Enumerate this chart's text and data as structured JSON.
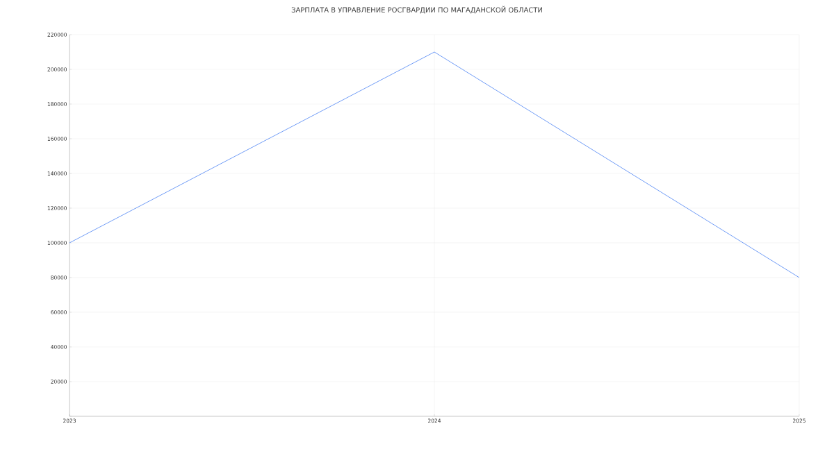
{
  "chart_data": {
    "type": "line",
    "title": "ЗАРПЛАТА В УПРАВЛЕНИЕ РОСГВАРДИИ ПО МАГАДАНСКОЙ ОБЛАСТИ",
    "x": [
      2023,
      2024,
      2025
    ],
    "series": [
      {
        "color": "#6f9cf6",
        "values": [
          100000,
          210000,
          80000
        ]
      }
    ],
    "xlim": [
      2023,
      2025
    ],
    "xticks": [
      2023,
      2024,
      2025
    ],
    "ylim": [
      0,
      220000
    ],
    "yticks": [
      {
        "value": 0,
        "label": null
      },
      20000,
      40000,
      60000,
      80000,
      100000,
      120000,
      140000,
      160000,
      180000,
      200000,
      220000
    ],
    "grid": true,
    "marker": "none",
    "line_style": "solid"
  }
}
